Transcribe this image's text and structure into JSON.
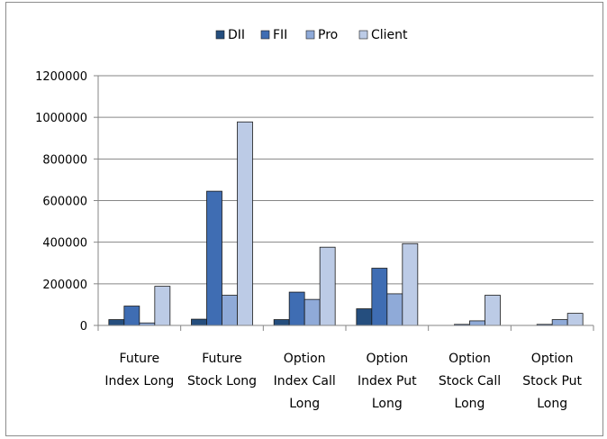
{
  "chart_data": {
    "type": "bar",
    "categories": [
      [
        "Future",
        "Index Long"
      ],
      [
        "Future",
        "Stock Long"
      ],
      [
        "Option",
        "Index Call",
        "Long"
      ],
      [
        "Option",
        "Index Put",
        "Long"
      ],
      [
        "Option",
        "Stock Call",
        "Long"
      ],
      [
        "Option",
        "Stock Put",
        "Long"
      ]
    ],
    "series": [
      {
        "name": "DII",
        "color": "#254e7e",
        "values": [
          28000,
          30000,
          28000,
          80000,
          0,
          0
        ]
      },
      {
        "name": "FII",
        "color": "#3f6db3",
        "values": [
          93000,
          645000,
          160000,
          275000,
          5000,
          5000
        ]
      },
      {
        "name": "Pro",
        "color": "#8faad8",
        "values": [
          12000,
          145000,
          125000,
          152000,
          22000,
          28000
        ]
      },
      {
        "name": "Client",
        "color": "#bccbe6",
        "values": [
          188000,
          978000,
          376000,
          393000,
          145000,
          58000
        ]
      }
    ],
    "yticks": [
      "0",
      "200000",
      "400000",
      "600000",
      "800000",
      "1000000",
      "1200000"
    ],
    "ylim": [
      0,
      1200000
    ],
    "grid": true,
    "legend": "top"
  }
}
